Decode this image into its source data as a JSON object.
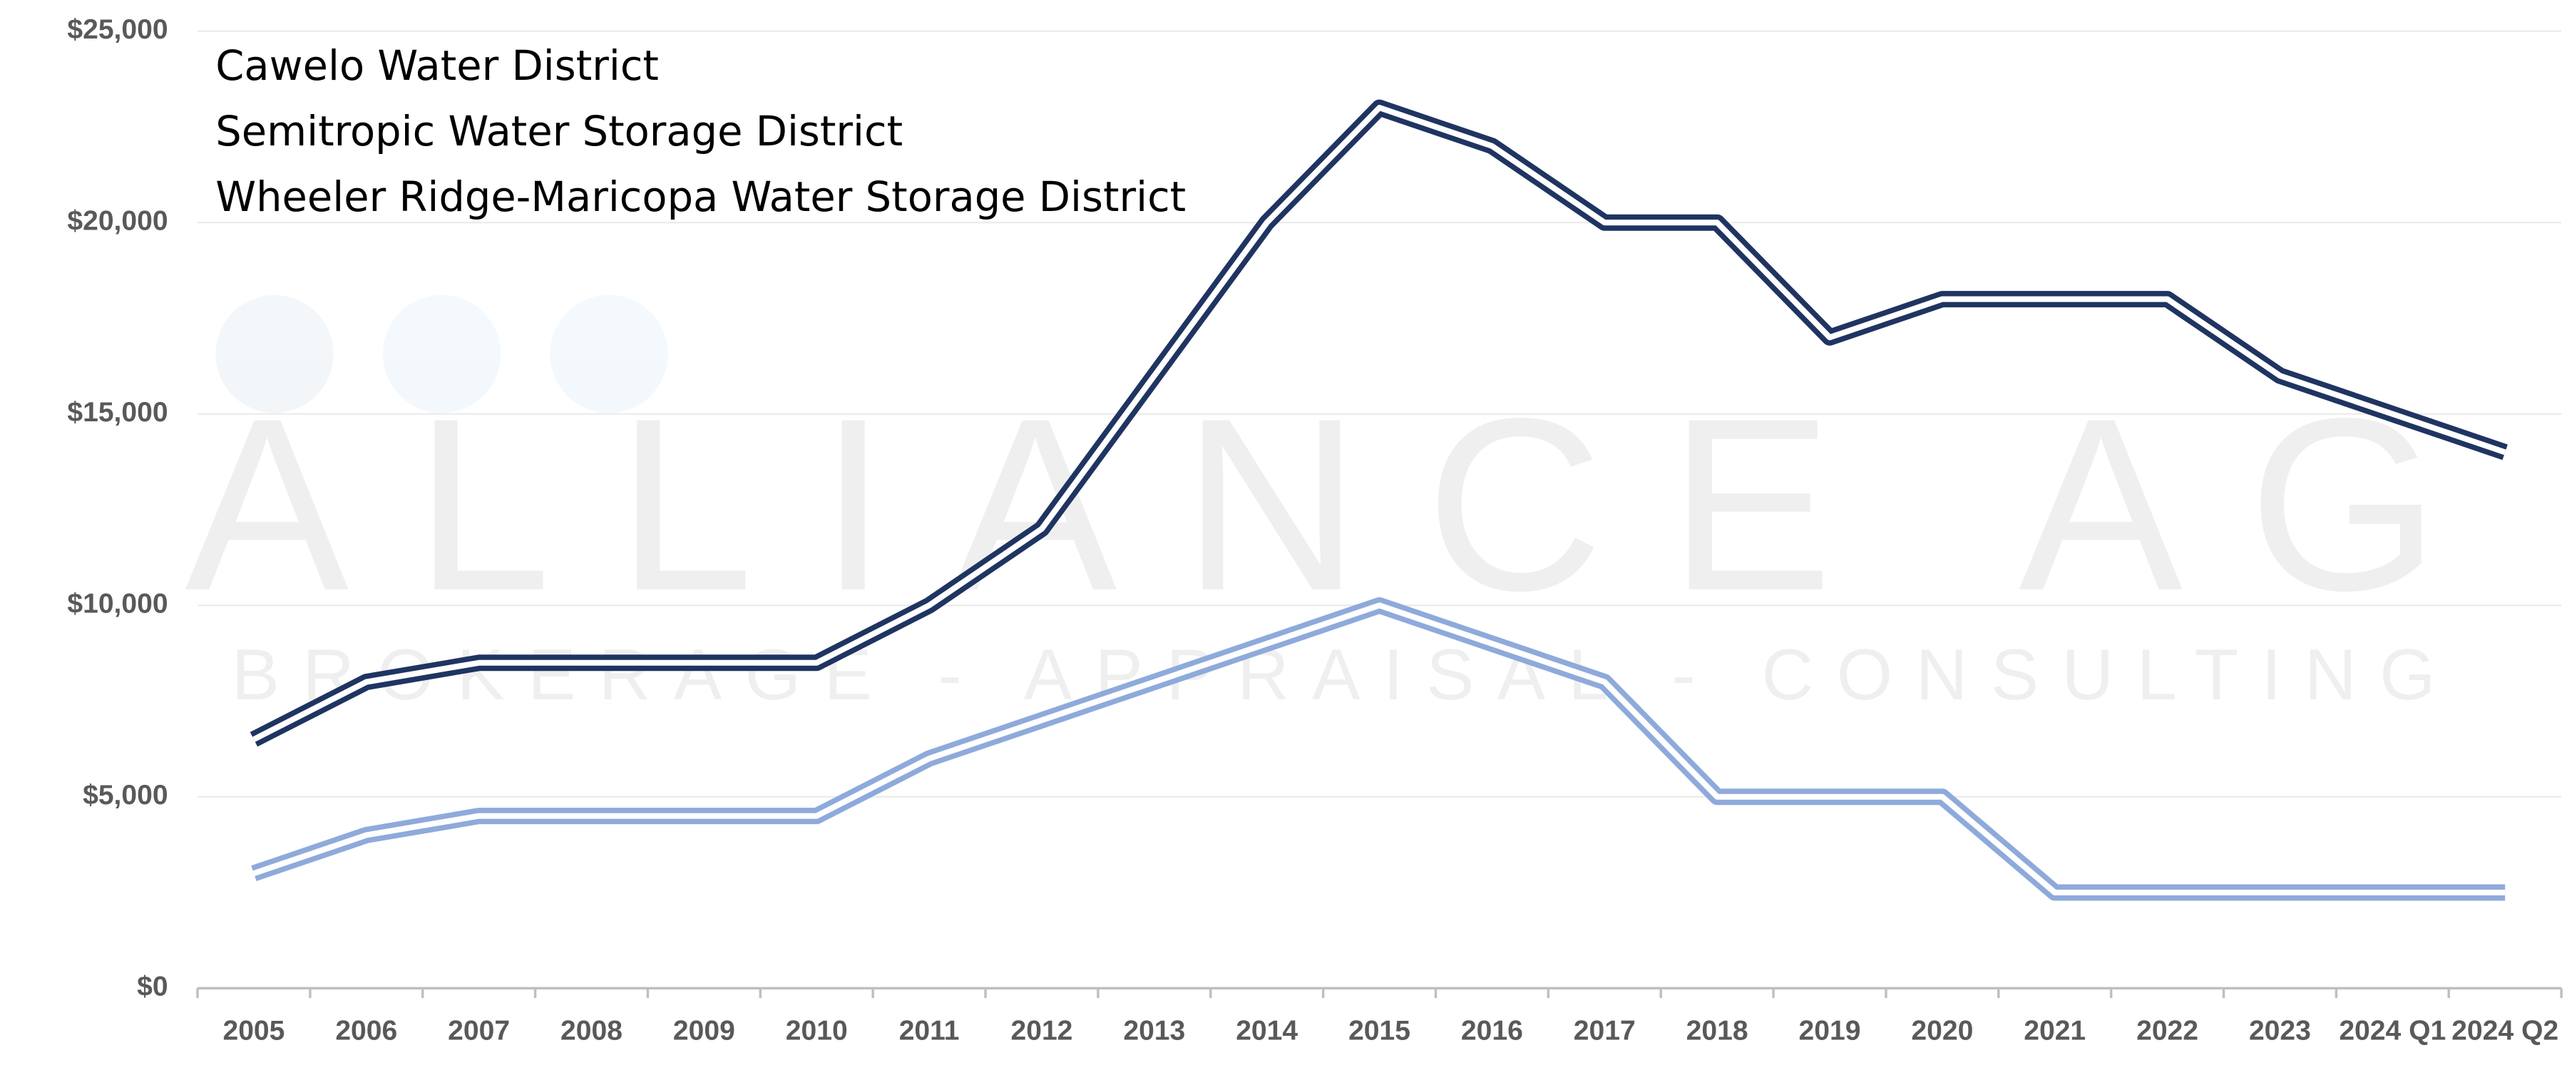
{
  "chart_data": {
    "type": "line",
    "annotations": [
      "Cawelo Water District",
      "Semitropic Water Storage District",
      "Wheeler Ridge-Maricopa Water Storage District"
    ],
    "watermark": [
      "ALLIANCE AG",
      "BROKERAGE - APPRAISAL - CONSULTING"
    ],
    "categories": [
      "2005",
      "2006",
      "2007",
      "2008",
      "2009",
      "2010",
      "2011",
      "2012",
      "2013",
      "2014",
      "2015",
      "2016",
      "2017",
      "2018",
      "2019",
      "2020",
      "2021",
      "2022",
      "2023",
      "2024 Q1",
      "2024 Q2"
    ],
    "series": [
      {
        "color": "#1f3461",
        "values": [
          6500,
          8000,
          8500,
          8500,
          8500,
          8500,
          10000,
          12000,
          16000,
          20000,
          23000,
          22000,
          20000,
          20000,
          17000,
          18000,
          18000,
          18000,
          16000,
          15000,
          14000
        ]
      },
      {
        "color": "#8eaadb",
        "values": [
          3000,
          4000,
          4500,
          4500,
          4500,
          4500,
          6000,
          7000,
          8000,
          9000,
          10000,
          9000,
          8000,
          5000,
          5000,
          5000,
          2500,
          2500,
          2500,
          2500,
          2500
        ]
      }
    ],
    "ylim": [
      0,
      25000
    ],
    "yticks": [
      {
        "value": 0,
        "label": "$0"
      },
      {
        "value": 5000,
        "label": "$5,000"
      },
      {
        "value": 10000,
        "label": "$10,000"
      },
      {
        "value": 15000,
        "label": "$15,000"
      },
      {
        "value": 20000,
        "label": "$20,000"
      },
      {
        "value": 25000,
        "label": "$25,000"
      }
    ],
    "grid": true
  }
}
